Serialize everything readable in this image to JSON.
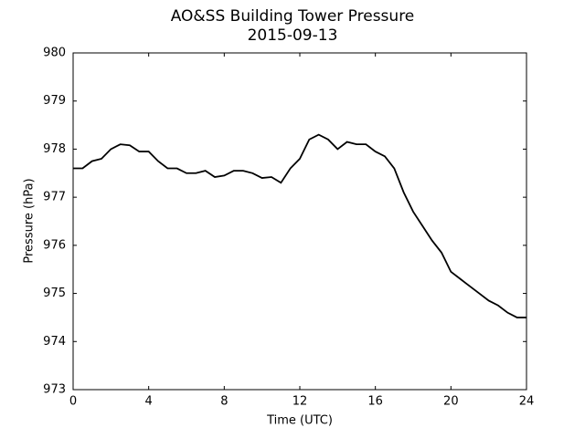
{
  "chart_data": {
    "type": "line",
    "title": "AO&SS Building Tower Pressure",
    "subtitle": "2015-09-13",
    "xlabel": "Time (UTC)",
    "ylabel": "Pressure (hPa)",
    "xlim": [
      0,
      24
    ],
    "xticks": [
      0,
      4,
      8,
      12,
      16,
      20,
      24
    ],
    "ylim": [
      973,
      980
    ],
    "yticks": [
      973,
      974,
      975,
      976,
      977,
      978,
      979,
      980
    ],
    "x": [
      0,
      0.5,
      1,
      1.5,
      2,
      2.5,
      3,
      3.5,
      4,
      4.5,
      5,
      5.5,
      6,
      6.5,
      7,
      7.5,
      8,
      8.5,
      9,
      9.5,
      10,
      10.5,
      11,
      11.5,
      12,
      12.5,
      13,
      13.5,
      14,
      14.5,
      15,
      15.5,
      16,
      16.5,
      17,
      17.5,
      18,
      18.5,
      19,
      19.5,
      20,
      20.5,
      21,
      21.5,
      22,
      22.5,
      23,
      23.5,
      24
    ],
    "series": [
      {
        "color": "#000000",
        "values": [
          977.6,
          977.6,
          977.75,
          977.8,
          978.0,
          978.1,
          978.08,
          977.95,
          977.95,
          977.75,
          977.6,
          977.6,
          977.5,
          977.5,
          977.55,
          977.42,
          977.45,
          977.55,
          977.55,
          977.5,
          977.4,
          977.42,
          977.3,
          977.6,
          977.8,
          978.2,
          978.3,
          978.2,
          978.0,
          978.15,
          978.1,
          978.1,
          977.95,
          977.85,
          977.6,
          977.1,
          976.7,
          976.4,
          976.1,
          975.85,
          975.45,
          975.3,
          975.15,
          975.0,
          974.85,
          974.75,
          974.6,
          974.5,
          974.5
        ]
      }
    ]
  }
}
